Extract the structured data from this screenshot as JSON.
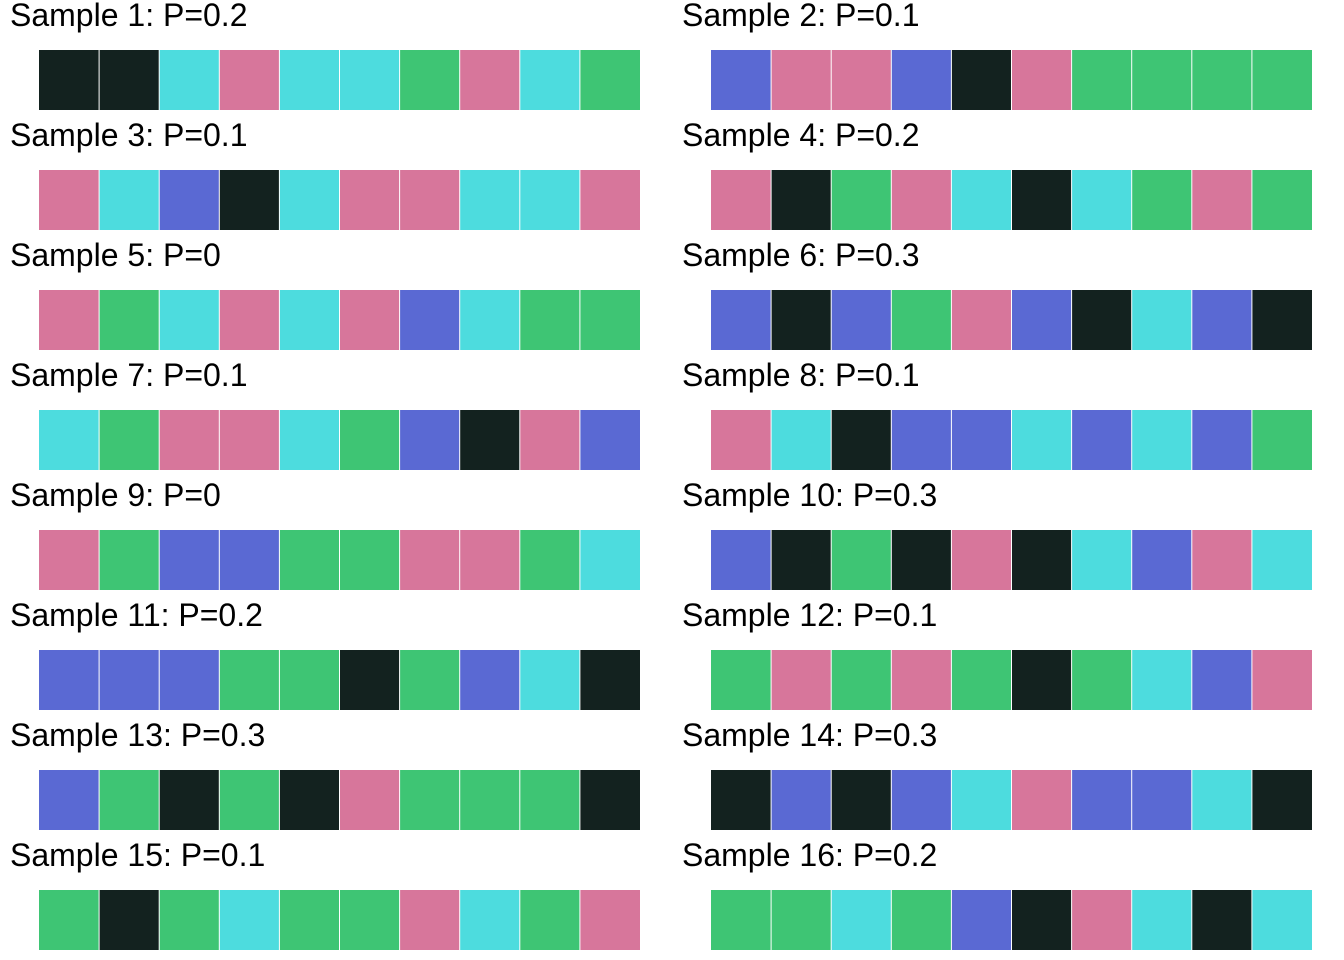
{
  "colors": {
    "black": "#13221f",
    "cyan": "#4ddcde",
    "pink": "#d7769b",
    "green": "#3ec574",
    "blue": "#5a69d3",
    "divider": "#ffffff"
  },
  "chart_data": {
    "type": "heatmap",
    "layout": "2 columns x 8 rows of 10-cell colour strips",
    "samples": [
      {
        "title": "Sample 1: P=0.2",
        "cells": [
          "black",
          "black",
          "cyan",
          "pink",
          "cyan",
          "cyan",
          "green",
          "pink",
          "cyan",
          "green"
        ]
      },
      {
        "title": "Sample 2: P=0.1",
        "cells": [
          "blue",
          "pink",
          "pink",
          "blue",
          "black",
          "pink",
          "green",
          "green",
          "green",
          "green"
        ]
      },
      {
        "title": "Sample 3: P=0.1",
        "cells": [
          "pink",
          "cyan",
          "blue",
          "black",
          "cyan",
          "pink",
          "pink",
          "cyan",
          "cyan",
          "pink"
        ]
      },
      {
        "title": "Sample 4: P=0.2",
        "cells": [
          "pink",
          "black",
          "green",
          "pink",
          "cyan",
          "black",
          "cyan",
          "green",
          "pink",
          "green"
        ]
      },
      {
        "title": "Sample 5: P=0",
        "cells": [
          "pink",
          "green",
          "cyan",
          "pink",
          "cyan",
          "pink",
          "blue",
          "cyan",
          "green",
          "green"
        ]
      },
      {
        "title": "Sample 6: P=0.3",
        "cells": [
          "blue",
          "black",
          "blue",
          "green",
          "pink",
          "blue",
          "black",
          "cyan",
          "blue",
          "black"
        ]
      },
      {
        "title": "Sample 7: P=0.1",
        "cells": [
          "cyan",
          "green",
          "pink",
          "pink",
          "cyan",
          "green",
          "blue",
          "black",
          "pink",
          "blue"
        ]
      },
      {
        "title": "Sample 8: P=0.1",
        "cells": [
          "pink",
          "cyan",
          "black",
          "blue",
          "blue",
          "cyan",
          "blue",
          "cyan",
          "blue",
          "green"
        ]
      },
      {
        "title": "Sample 9: P=0",
        "cells": [
          "pink",
          "green",
          "blue",
          "blue",
          "green",
          "green",
          "pink",
          "pink",
          "green",
          "cyan"
        ]
      },
      {
        "title": "Sample 10: P=0.3",
        "cells": [
          "blue",
          "black",
          "green",
          "black",
          "pink",
          "black",
          "cyan",
          "blue",
          "pink",
          "cyan"
        ]
      },
      {
        "title": "Sample 11: P=0.2",
        "cells": [
          "blue",
          "blue",
          "blue",
          "green",
          "green",
          "black",
          "green",
          "blue",
          "cyan",
          "black"
        ]
      },
      {
        "title": "Sample 12: P=0.1",
        "cells": [
          "green",
          "pink",
          "green",
          "pink",
          "green",
          "black",
          "green",
          "cyan",
          "blue",
          "pink"
        ]
      },
      {
        "title": "Sample 13: P=0.3",
        "cells": [
          "blue",
          "green",
          "black",
          "green",
          "black",
          "pink",
          "green",
          "green",
          "green",
          "black"
        ]
      },
      {
        "title": "Sample 14: P=0.3",
        "cells": [
          "black",
          "blue",
          "black",
          "blue",
          "cyan",
          "pink",
          "blue",
          "blue",
          "cyan",
          "black"
        ]
      },
      {
        "title": "Sample 15: P=0.1",
        "cells": [
          "green",
          "black",
          "green",
          "cyan",
          "green",
          "green",
          "pink",
          "cyan",
          "green",
          "pink"
        ]
      },
      {
        "title": "Sample 16: P=0.2",
        "cells": [
          "green",
          "green",
          "cyan",
          "green",
          "blue",
          "black",
          "pink",
          "cyan",
          "black",
          "cyan"
        ]
      }
    ]
  }
}
